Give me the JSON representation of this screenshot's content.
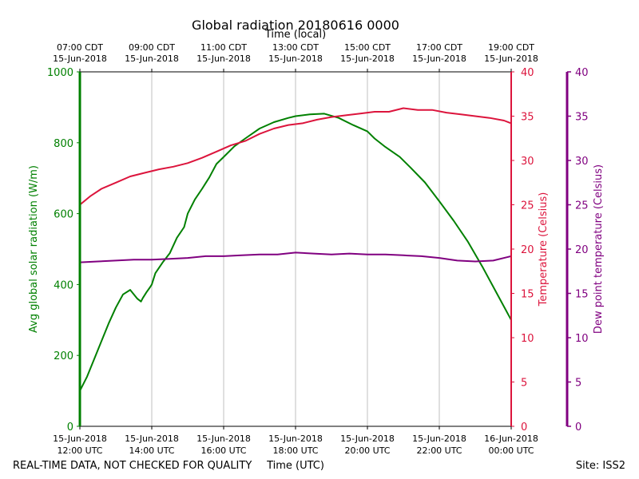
{
  "chart_data": {
    "type": "line",
    "title": "Global radiation 20180616 0000",
    "top_xlabel": "Time (local)",
    "xlabel": "Time (UTC)",
    "footer_left": "REAL-TIME DATA, NOT CHECKED FOR QUALITY",
    "footer_right": "Site: ISS2",
    "x_unit": "hours UTC",
    "xlim": [
      12,
      24
    ],
    "bottom_ticks": [
      {
        "x": 12,
        "line1": "15-Jun-2018",
        "line2": "12:00 UTC"
      },
      {
        "x": 14,
        "line1": "15-Jun-2018",
        "line2": "14:00 UTC"
      },
      {
        "x": 16,
        "line1": "15-Jun-2018",
        "line2": "16:00 UTC"
      },
      {
        "x": 18,
        "line1": "15-Jun-2018",
        "line2": "18:00 UTC"
      },
      {
        "x": 20,
        "line1": "15-Jun-2018",
        "line2": "20:00 UTC"
      },
      {
        "x": 22,
        "line1": "15-Jun-2018",
        "line2": "22:00 UTC"
      },
      {
        "x": 24,
        "line1": "16-Jun-2018",
        "line2": "00:00 UTC"
      }
    ],
    "top_ticks": [
      {
        "x": 12,
        "line1": "07:00 CDT",
        "line2": "15-Jun-2018"
      },
      {
        "x": 14,
        "line1": "09:00 CDT",
        "line2": "15-Jun-2018"
      },
      {
        "x": 16,
        "line1": "11:00 CDT",
        "line2": "15-Jun-2018"
      },
      {
        "x": 18,
        "line1": "13:00 CDT",
        "line2": "15-Jun-2018"
      },
      {
        "x": 20,
        "line1": "15:00 CDT",
        "line2": "15-Jun-2018"
      },
      {
        "x": 22,
        "line1": "17:00 CDT",
        "line2": "15-Jun-2018"
      },
      {
        "x": 24,
        "line1": "19:00 CDT",
        "line2": "15-Jun-2018"
      }
    ],
    "axes": {
      "left": {
        "label": "Avg global solar radiation (W/m)",
        "ylim": [
          0,
          1000
        ],
        "ticks": [
          0,
          200,
          400,
          600,
          800,
          1000
        ],
        "color": "#008000"
      },
      "right": {
        "label": "Temperature (Celsius)",
        "ylim": [
          0,
          40
        ],
        "ticks": [
          0,
          5,
          10,
          15,
          20,
          25,
          30,
          35,
          40
        ],
        "color": "#dc143c"
      },
      "far_right": {
        "label": "Dew point temperature (Celsius)",
        "ylim": [
          0,
          40
        ],
        "ticks": [
          0,
          5,
          10,
          15,
          20,
          25,
          30,
          35,
          40
        ],
        "color": "#800080"
      }
    },
    "grid": "vertical",
    "series": [
      {
        "name": "Avg global solar radiation",
        "axis": "left",
        "color": "#008000",
        "x": [
          12.0,
          12.2,
          12.4,
          12.6,
          12.8,
          13.0,
          13.2,
          13.4,
          13.6,
          13.7,
          13.75,
          13.85,
          13.95,
          14.0,
          14.1,
          14.3,
          14.5,
          14.7,
          14.9,
          15.0,
          15.2,
          15.4,
          15.6,
          15.8,
          16.0,
          16.3,
          16.6,
          17.0,
          17.4,
          17.8,
          18.0,
          18.4,
          18.8,
          19.2,
          19.6,
          20.0,
          20.2,
          20.5,
          20.9,
          21.2,
          21.6,
          22.0,
          22.4,
          22.8,
          23.2,
          23.6,
          24.0
        ],
        "values": [
          100,
          140,
          190,
          240,
          290,
          335,
          372,
          385,
          360,
          352,
          362,
          378,
          392,
          400,
          432,
          462,
          488,
          532,
          562,
          600,
          640,
          670,
          702,
          740,
          760,
          790,
          812,
          840,
          858,
          870,
          875,
          880,
          882,
          870,
          850,
          832,
          812,
          788,
          760,
          730,
          688,
          635,
          580,
          520,
          450,
          375,
          300
        ]
      },
      {
        "name": "Temperature",
        "axis": "right",
        "color": "#dc143c",
        "x": [
          12.0,
          12.3,
          12.6,
          13.0,
          13.4,
          13.8,
          14.2,
          14.6,
          15.0,
          15.4,
          15.8,
          16.2,
          16.6,
          17.0,
          17.4,
          17.8,
          18.2,
          18.6,
          19.0,
          19.4,
          19.8,
          20.2,
          20.6,
          21.0,
          21.4,
          21.8,
          22.2,
          22.6,
          23.0,
          23.4,
          23.8,
          24.0
        ],
        "values": [
          25.0,
          26.0,
          26.8,
          27.5,
          28.2,
          28.6,
          29.0,
          29.3,
          29.7,
          30.3,
          31.0,
          31.7,
          32.2,
          33.0,
          33.6,
          34.0,
          34.2,
          34.6,
          34.9,
          35.1,
          35.3,
          35.5,
          35.5,
          35.9,
          35.7,
          35.7,
          35.4,
          35.2,
          35.0,
          34.8,
          34.5,
          34.2
        ]
      },
      {
        "name": "Dew point temperature",
        "axis": "far_right",
        "color": "#800080",
        "x": [
          12.0,
          12.5,
          13.0,
          13.5,
          14.0,
          14.5,
          15.0,
          15.5,
          16.0,
          16.5,
          17.0,
          17.5,
          18.0,
          18.5,
          19.0,
          19.5,
          20.0,
          20.5,
          21.0,
          21.5,
          22.0,
          22.5,
          23.0,
          23.5,
          24.0
        ],
        "values": [
          18.5,
          18.6,
          18.7,
          18.8,
          18.8,
          18.9,
          19.0,
          19.2,
          19.2,
          19.3,
          19.4,
          19.4,
          19.6,
          19.5,
          19.4,
          19.5,
          19.4,
          19.4,
          19.3,
          19.2,
          19.0,
          18.7,
          18.6,
          18.7,
          19.2
        ]
      }
    ]
  }
}
